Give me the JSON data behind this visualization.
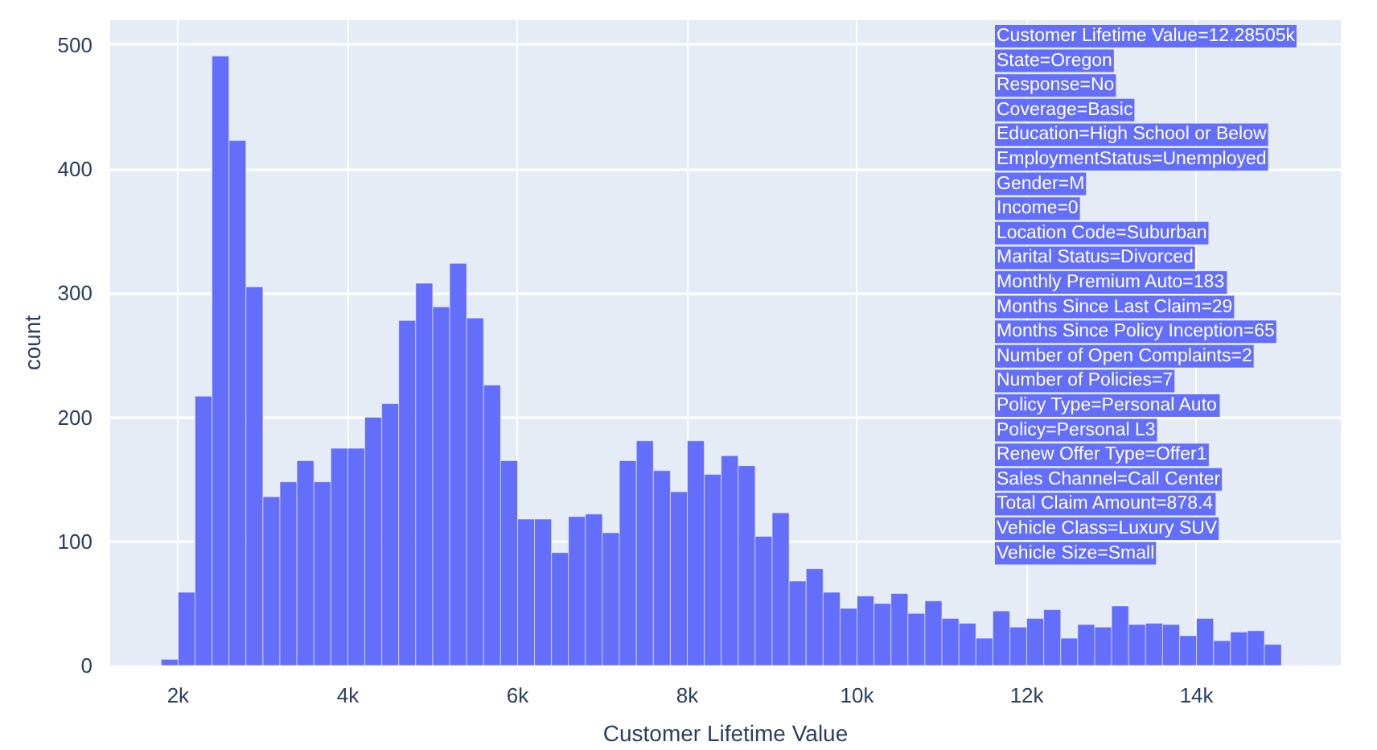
{
  "chart_data": {
    "type": "histogram",
    "xlabel": "Customer Lifetime Value",
    "ylabel": "count",
    "color": "#636efa",
    "bins": [
      1800,
      2000,
      2200,
      2400,
      2600,
      2800,
      3000,
      3200,
      3400,
      3600,
      3800,
      4000,
      4200,
      4400,
      4600,
      4800,
      5000,
      5200,
      5400,
      5600,
      5800,
      6000,
      6200,
      6400,
      6600,
      6800,
      7000,
      7200,
      7400,
      7600,
      7800,
      8000,
      8200,
      8400,
      8600,
      8800,
      9000,
      9200,
      9400,
      9600,
      9800,
      10000,
      10200,
      10400,
      10600,
      10800,
      11000,
      11200,
      11400,
      11600,
      11800,
      12000,
      12200,
      12400,
      12600,
      12800,
      13000,
      13200,
      13400,
      13600,
      13800,
      14000,
      14200,
      14400,
      14600,
      14800,
      15000
    ],
    "values": [
      5,
      59,
      217,
      491,
      423,
      305,
      136,
      148,
      165,
      148,
      175,
      175,
      200,
      211,
      278,
      308,
      289,
      324,
      280,
      226,
      165,
      118,
      118,
      91,
      120,
      122,
      107,
      165,
      181,
      157,
      140,
      181,
      154,
      169,
      161,
      104,
      123,
      68,
      78,
      59,
      46,
      56,
      50,
      58,
      42,
      52,
      38,
      34,
      22,
      44,
      31,
      38,
      45,
      22,
      33,
      31,
      48,
      33,
      34,
      33,
      24,
      38,
      20,
      27,
      28,
      17
    ],
    "xlim": [
      1200,
      15700
    ],
    "ylim": [
      0,
      520
    ],
    "xticks": [
      {
        "value": 2000,
        "label": "2k"
      },
      {
        "value": 4000,
        "label": "4k"
      },
      {
        "value": 6000,
        "label": "6k"
      },
      {
        "value": 8000,
        "label": "8k"
      },
      {
        "value": 10000,
        "label": "10k"
      },
      {
        "value": 12000,
        "label": "12k"
      },
      {
        "value": 14000,
        "label": "14k"
      }
    ],
    "yticks": [
      0,
      100,
      200,
      300,
      400,
      500
    ],
    "grid": true,
    "annotations": [
      "Customer Lifetime Value=12.28505k\nState=Oregon\nResponse=No\nCoverage=Basic\nEducation=High School or Below\nEmploymentStatus=Unemployed\nGender=M\nIncome=0\nLocation Code=Suburban\nMarital Status=Divorced\nMonthly Premium Auto=183\nMonths Since Last Claim=29\nMonths Since Policy Inception=65\nNumber of Open Complaints=2\nNumber of Policies=7\nPolicy Type=Personal Auto\nPolicy=Personal L3\nRenew Offer Type=Offer1\nSales Channel=Call Center\nTotal Claim Amount=878.4\nVehicle Class=Luxury SUV\nVehicle Size=Small"
    ]
  }
}
